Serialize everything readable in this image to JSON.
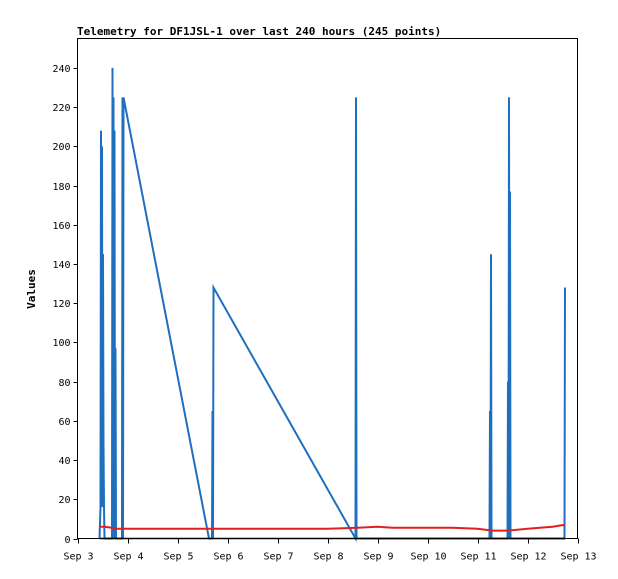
{
  "chart_data": {
    "type": "line",
    "title": "Telemetry for DF1JSL-1 over last 240 hours (245 points)",
    "xlabel": "",
    "ylabel": "Values",
    "x_tick_labels": [
      "Sep 3",
      "Sep 4",
      "Sep 5",
      "Sep 6",
      "Sep 7",
      "Sep 8",
      "Sep 9",
      "Sep 10",
      "Sep 11",
      "Sep 12",
      "Sep 13"
    ],
    "x_ticks": [
      3,
      4,
      5,
      6,
      7,
      8,
      9,
      10,
      11,
      12,
      13
    ],
    "xlim": [
      3,
      13
    ],
    "y_ticks": [
      0,
      20,
      40,
      60,
      80,
      100,
      120,
      140,
      160,
      180,
      200,
      220,
      240
    ],
    "ylim": [
      0,
      255
    ],
    "grid": false,
    "legend": "none",
    "series": [
      {
        "color": "#1f6fbf",
        "x": [
          3.44,
          3.46,
          3.47,
          3.48,
          3.49,
          3.5,
          3.51,
          3.52,
          3.53,
          3.54,
          3.55,
          3.56,
          3.57,
          3.68,
          3.69,
          3.7,
          3.71,
          3.72,
          3.73,
          3.74,
          3.75,
          3.76,
          3.77,
          3.78,
          3.8,
          3.81,
          3.82,
          3.83,
          3.84,
          3.85,
          3.86,
          3.87,
          3.88,
          3.89,
          3.9,
          3.91,
          3.92,
          5.63,
          5.66,
          5.67,
          5.68,
          5.69,
          5.7,
          5.71,
          5.72,
          8.56,
          8.57,
          8.58,
          11.22,
          11.23,
          11.24,
          11.25,
          11.26,
          11.27,
          11.28,
          11.6,
          11.61,
          11.62,
          11.63,
          11.64,
          11.65,
          11.66,
          12.74,
          12.75
        ],
        "y": [
          0,
          16,
          208,
          16,
          200,
          16,
          145,
          48,
          16,
          0,
          0,
          0,
          0,
          0,
          0,
          240,
          0,
          225,
          8,
          208,
          0,
          97,
          0,
          0,
          0,
          0,
          0,
          0,
          0,
          0,
          0,
          0,
          0,
          0,
          225,
          0,
          225,
          0,
          0,
          0,
          0,
          0,
          65,
          0,
          128,
          0,
          225,
          0,
          0,
          0,
          0,
          65,
          0,
          145,
          0,
          0,
          80,
          0,
          225,
          0,
          177,
          0,
          0,
          128
        ]
      },
      {
        "color": "#e02020",
        "x": [
          3.44,
          3.55,
          3.8,
          4.0,
          5.0,
          6.0,
          7.0,
          8.0,
          8.6,
          9.0,
          9.3,
          10.0,
          10.5,
          11.0,
          11.3,
          11.6,
          12.0,
          12.5,
          12.75
        ],
        "y": [
          6,
          6,
          5,
          5,
          5,
          5,
          5,
          5,
          5.5,
          6,
          5.5,
          5.5,
          5.5,
          5,
          4,
          4,
          5,
          6,
          7
        ]
      },
      {
        "color": "#000000",
        "x": [
          3.44,
          12.75
        ],
        "y": [
          0,
          0
        ]
      }
    ]
  }
}
